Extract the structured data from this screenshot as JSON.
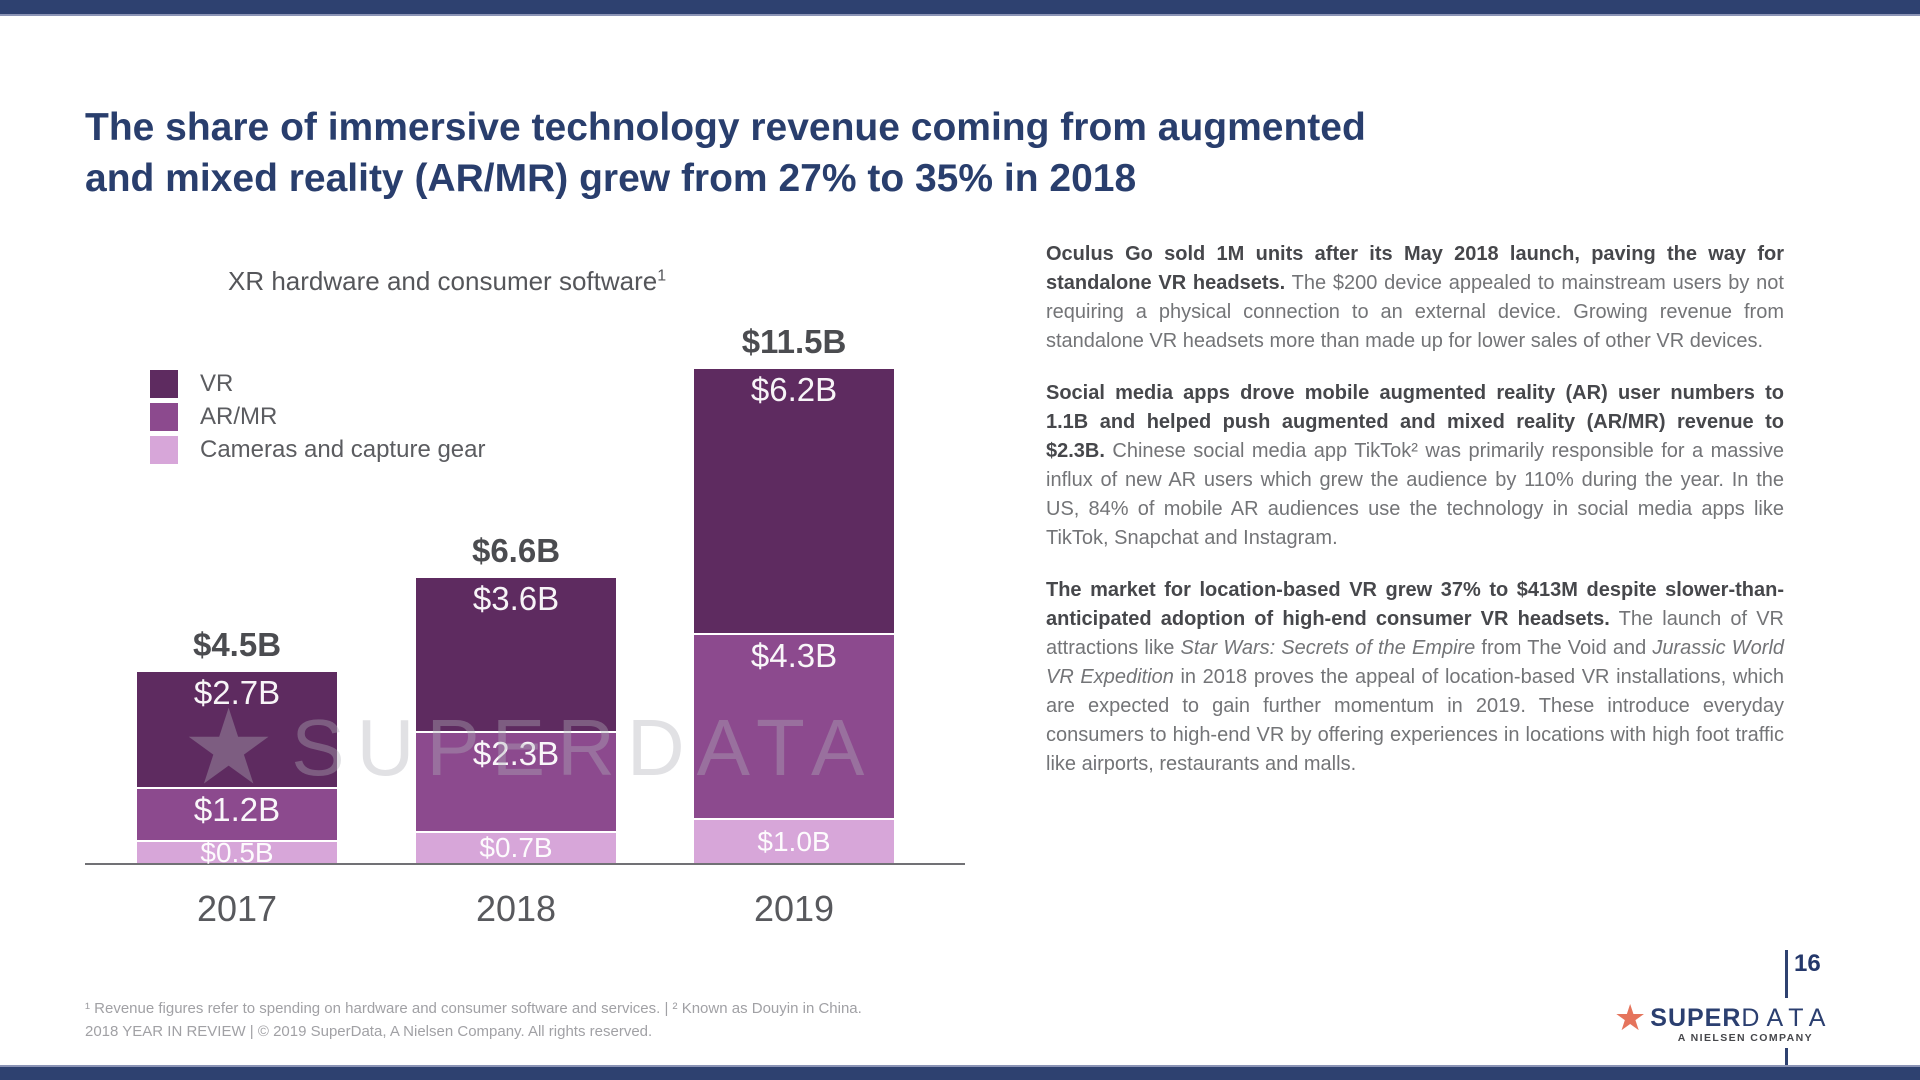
{
  "slide_title": "The share of immersive technology revenue coming from augmented and mixed reality (AR/MR) grew from 27% to 35% in 2018",
  "chart": {
    "title": "XR hardware and consumer software",
    "title_superscript": "1",
    "watermark_star": "★",
    "watermark_text": "SUPERDATA"
  },
  "chart_data": {
    "type": "bar",
    "stacked": true,
    "title": "XR hardware and consumer software¹",
    "unit": "USD billions",
    "categories": [
      "2017",
      "2018",
      "2019"
    ],
    "series": [
      {
        "name": "VR",
        "color": "#5e2b60",
        "values": [
          2.7,
          3.6,
          6.2
        ],
        "labels": [
          "$2.7B",
          "$3.6B",
          "$6.2B"
        ],
        "label_style": "top"
      },
      {
        "name": "AR/MR",
        "color": "#8c4a8e",
        "values": [
          1.2,
          2.3,
          4.3
        ],
        "labels": [
          "$1.2B",
          "$2.3B",
          "$4.3B"
        ],
        "label_style": "top"
      },
      {
        "name": "Cameras and capture gear",
        "color": "#d7a6d9",
        "values": [
          0.5,
          0.7,
          1.0
        ],
        "labels": [
          "$0.5B",
          "$0.7B",
          "$1.0B"
        ],
        "label_style": "center"
      }
    ],
    "totals": [
      4.5,
      6.6,
      11.5
    ],
    "total_labels": [
      "$4.5B",
      "$6.6B",
      "$11.5B"
    ],
    "legend_position": "upper-left",
    "y_axis": "hidden",
    "grid": false
  },
  "body": {
    "paragraphs": [
      {
        "segments": [
          {
            "text": "Oculus Go sold 1M units after its May 2018 launch, paving the way for standalone VR headsets.",
            "bold": true
          },
          {
            "text": " The $200 device appealed to mainstream users by not requiring a physical connection to an external device. Growing revenue from standalone VR headsets more than made up for lower sales of other VR devices."
          }
        ]
      },
      {
        "segments": [
          {
            "text": "Social media apps drove mobile augmented reality (AR) user numbers to 1.1B and helped push augmented and mixed reality (AR/MR) revenue to $2.3B.",
            "bold": true
          },
          {
            "text": " Chinese social media app TikTok² was primarily responsible for a massive influx of new AR users which grew the audience by 110% during the year. In the US, 84% of mobile AR audiences use the technology in social media apps like TikTok, Snapchat and Instagram."
          }
        ]
      },
      {
        "segments": [
          {
            "text": "The market for location-based VR grew 37% to $413M despite slower-than-anticipated adoption of high-end consumer VR headsets.",
            "bold": true
          },
          {
            "text": " The launch of VR attractions like "
          },
          {
            "text": "Star Wars: Secrets of the Empire",
            "italic": true
          },
          {
            "text": " from The Void and "
          },
          {
            "text": "Jurassic World VR Expedition",
            "italic": true
          },
          {
            "text": " in 2018 proves the appeal of location-based VR installations, which are expected to gain further momentum in 2019. These introduce everyday consumers to high-end VR by offering experiences in locations with high foot traffic like airports, restaurants and malls."
          }
        ]
      }
    ]
  },
  "footnotes": {
    "line1": "¹ Revenue figures refer to spending on hardware and consumer software and services.  |  ² Known as Douyin in China.",
    "line2": "2018 YEAR IN REVIEW  |  © 2019 SuperData, A Nielsen Company. All rights reserved."
  },
  "footer": {
    "page_number": "16",
    "logo_star": "★",
    "logo_super": "SUPER",
    "logo_data": "DATA",
    "logo_tagline": "A NIELSEN COMPANY"
  },
  "colors": {
    "accent_navy": "#2e4170",
    "title_navy": "#293e6d",
    "vr": "#5e2b60",
    "ar_mr": "#8c4a8e",
    "cameras": "#d7a6d9",
    "logo_star": "#e5745c"
  }
}
